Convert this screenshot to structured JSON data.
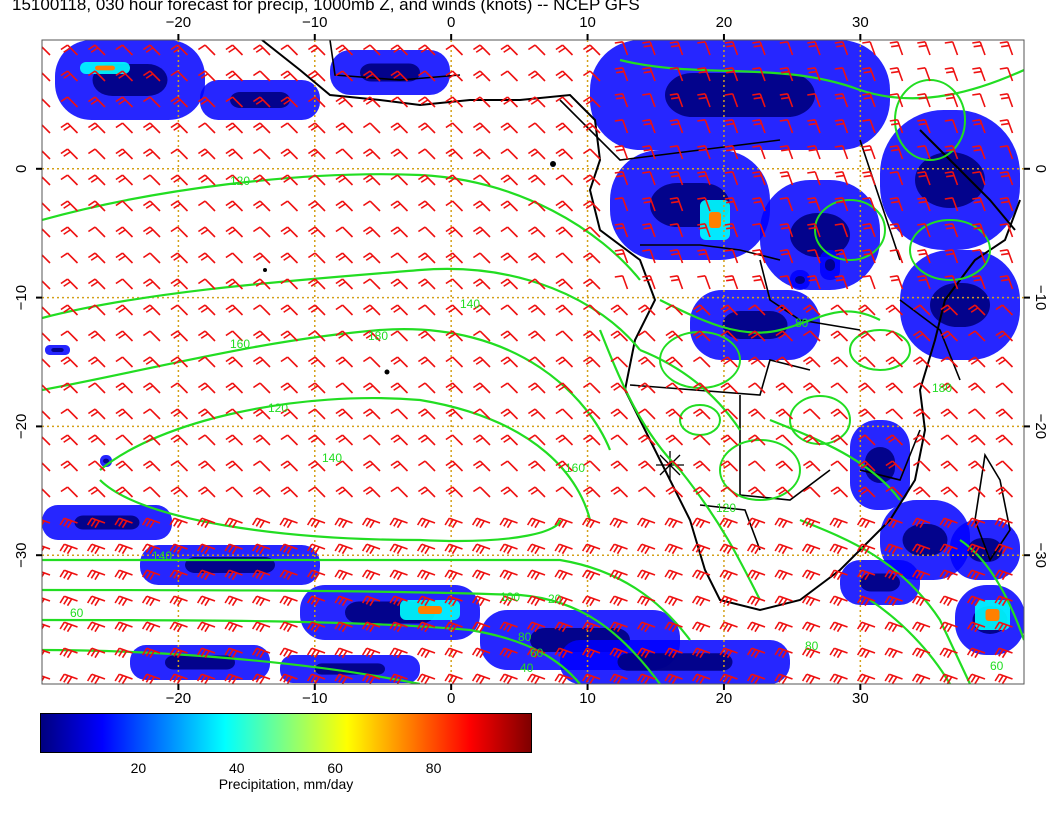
{
  "title": "15100118, 030 hour forecast for precip, 1000mb Z, and winds (knots) -- NCEP GFS",
  "axes": {
    "lon_top_labels": [
      "−20",
      "−10",
      "0",
      "10",
      "20",
      "30"
    ],
    "lon_bottom_labels": [
      "−20",
      "−10",
      "0",
      "10",
      "20",
      "30"
    ],
    "lat_left_labels": [
      "0",
      "−10",
      "−20",
      "−30"
    ],
    "lat_right_labels": [
      "0",
      "−10",
      "−20",
      "−30"
    ],
    "lon_values": [
      -20,
      -10,
      0,
      10,
      20,
      30
    ],
    "lat_values": [
      0,
      -10,
      -20,
      -30
    ],
    "lon_range": [
      -30,
      42
    ],
    "lat_range": [
      -40,
      10
    ],
    "grid": true,
    "grid_color": "#d4a017"
  },
  "contour_labels": [
    "120",
    "140",
    "160",
    "180",
    "120",
    "140",
    "160",
    "60",
    "100",
    "80",
    "60",
    "40",
    "20",
    "80",
    "120",
    "140",
    "180",
    "80",
    "60"
  ],
  "colors": {
    "contour": "#22dd22",
    "wind_barb": "#ee1111",
    "coastline": "#000000",
    "grid": "#d4a017"
  },
  "colorbar": {
    "tick_labels": [
      "20",
      "40",
      "60",
      "80"
    ],
    "tick_values": [
      20,
      40,
      60,
      80
    ],
    "range": [
      0,
      100
    ],
    "title": "Precipitation, mm/day",
    "colormap": [
      "#00007f",
      "#0000ff",
      "#0080ff",
      "#00ffff",
      "#80ff80",
      "#ffff00",
      "#ff8000",
      "#ff0000",
      "#7f0000"
    ]
  }
}
